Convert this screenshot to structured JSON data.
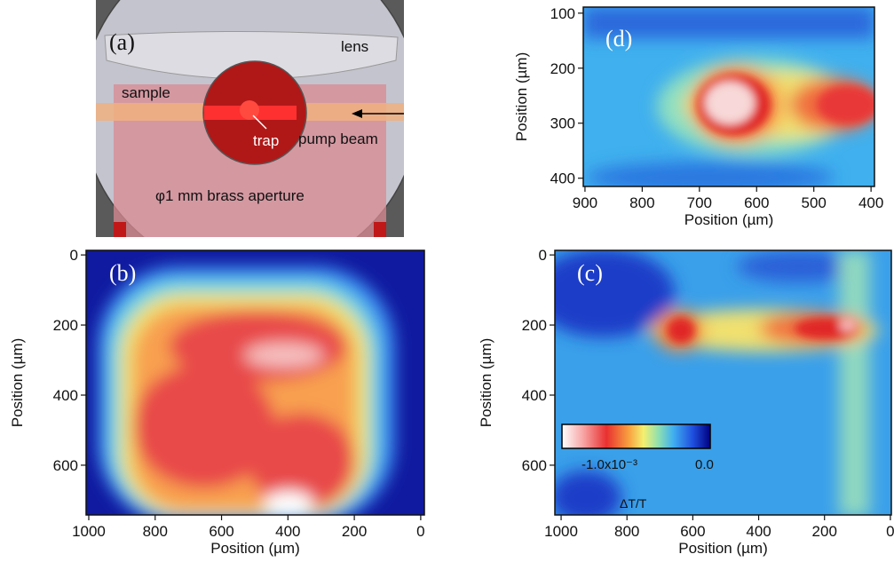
{
  "panels": {
    "a": {
      "label": "(a)",
      "lens": "lens",
      "sample": "sample",
      "trap": "trap",
      "pump": "pump beam",
      "aperture": "φ1 mm brass aperture"
    },
    "b": {
      "label": "(b)",
      "xlabel": "Position (µm)",
      "ylabel": "Position (µm)",
      "xlim": [
        1008,
        -11
      ],
      "ylim": [
        -13,
        742
      ],
      "xticks": [
        1000,
        800,
        600,
        400,
        200,
        0
      ],
      "yticks": [
        0,
        200,
        400,
        600
      ]
    },
    "c": {
      "label": "(c)",
      "xlabel": "Position (µm)",
      "ylabel": "Position (µm)",
      "xlim": [
        1019,
        -3
      ],
      "ylim": [
        -13,
        742
      ],
      "xticks": [
        1000,
        800,
        600,
        400,
        200,
        0
      ],
      "yticks": [
        0,
        200,
        400,
        600
      ],
      "colorbar": {
        "low": "-1.0x10⁻³",
        "high": "0.0",
        "title": "ΔT/T"
      }
    },
    "d": {
      "label": "(d)",
      "xlabel": "Position (µm)",
      "ylabel": "Position (µm)",
      "xlim": [
        903,
        394
      ],
      "ylim": [
        89,
        415
      ],
      "xticks": [
        900,
        800,
        700,
        600,
        500,
        400
      ],
      "yticks": [
        100,
        200,
        300,
        400
      ]
    }
  }
}
